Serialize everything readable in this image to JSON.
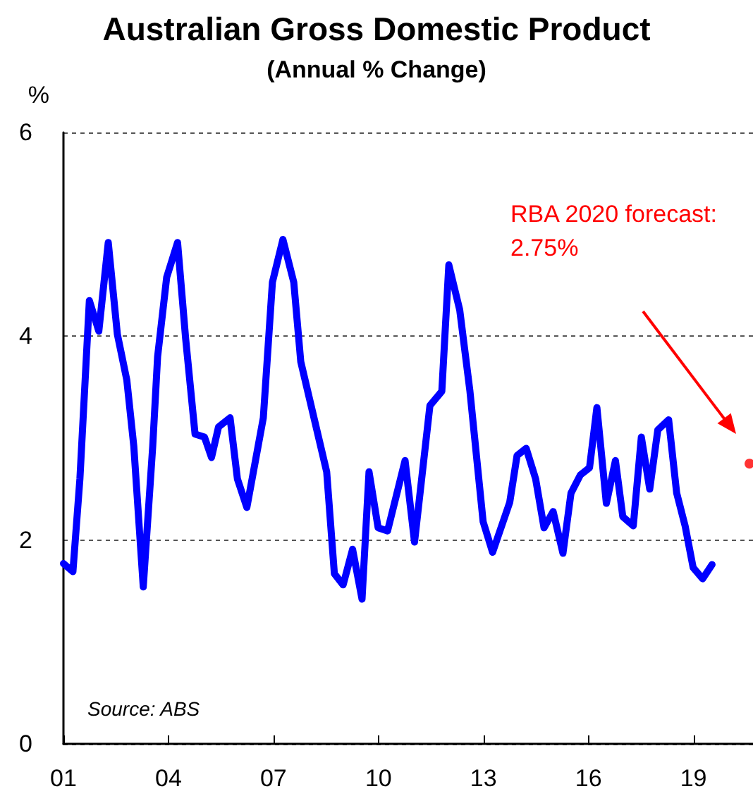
{
  "chart_data": {
    "type": "line",
    "title": "Australian Gross Domestic Product",
    "subtitle": "(Annual % Change)",
    "ylabel": "%",
    "annotations": [
      "RBA 2020 forecast: 2.75%",
      "Source: ABS"
    ],
    "series": [
      {
        "color": "#0000ff",
        "x": [
          2001.0,
          2001.27,
          2001.47,
          2001.74,
          2002.01,
          2002.28,
          2002.54,
          2002.81,
          2003.01,
          2003.28,
          2003.55,
          2003.69,
          2003.95,
          2004.26,
          2004.49,
          2004.76,
          2005.03,
          2005.23,
          2005.43,
          2005.76,
          2005.97,
          2006.24,
          2006.71,
          2006.97,
          2007.27,
          2007.58,
          2007.78,
          2008.52,
          2008.74,
          2008.99,
          2009.26,
          2009.53,
          2009.73,
          2009.99,
          2010.26,
          2010.76,
          2011.03,
          2011.47,
          2011.81,
          2012.01,
          2012.32,
          2012.61,
          2012.99,
          2013.26,
          2013.75,
          2013.96,
          2014.22,
          2014.49,
          2014.73,
          2014.99,
          2015.27,
          2015.5,
          2015.77,
          2016.03,
          2016.24,
          2016.51,
          2016.77,
          2016.98,
          2017.28,
          2017.51,
          2017.75,
          2017.98,
          2018.29,
          2018.52,
          2018.76,
          2018.99,
          2019.26,
          2019.53
        ],
        "values": [
          1.77,
          1.69,
          2.6,
          4.35,
          4.05,
          4.92,
          4.02,
          3.57,
          2.92,
          1.54,
          2.92,
          3.8,
          4.58,
          4.92,
          3.98,
          3.04,
          3.01,
          2.81,
          3.11,
          3.2,
          2.6,
          2.32,
          3.2,
          4.53,
          4.95,
          4.53,
          3.75,
          2.67,
          1.67,
          1.56,
          1.91,
          1.42,
          2.67,
          2.12,
          2.09,
          2.78,
          1.98,
          3.32,
          3.46,
          4.7,
          4.26,
          3.47,
          2.18,
          1.88,
          2.37,
          2.83,
          2.9,
          2.6,
          2.12,
          2.28,
          1.87,
          2.46,
          2.64,
          2.71,
          3.3,
          2.36,
          2.78,
          2.23,
          2.14,
          3.01,
          2.5,
          3.08,
          3.18,
          2.46,
          2.14,
          1.73,
          1.62,
          1.76
        ]
      },
      {
        "type": "scatter",
        "marker": "circle",
        "color": "#ff0000",
        "x": [
          2020.6
        ],
        "values": [
          2.75
        ]
      }
    ],
    "xlim": [
      2001,
      2020.7
    ],
    "xticks": [
      {
        "value": 2001,
        "label": "01"
      },
      {
        "value": 2004,
        "label": "04"
      },
      {
        "value": 2007,
        "label": "07"
      },
      {
        "value": 2010,
        "label": "10"
      },
      {
        "value": 2013,
        "label": "13"
      },
      {
        "value": 2016,
        "label": "16"
      },
      {
        "value": 2019,
        "label": "19"
      }
    ],
    "ylim": [
      0,
      6
    ],
    "yticks": [
      0,
      2,
      4,
      6
    ],
    "grid": "y",
    "line_style": "solid",
    "marker": "none"
  }
}
